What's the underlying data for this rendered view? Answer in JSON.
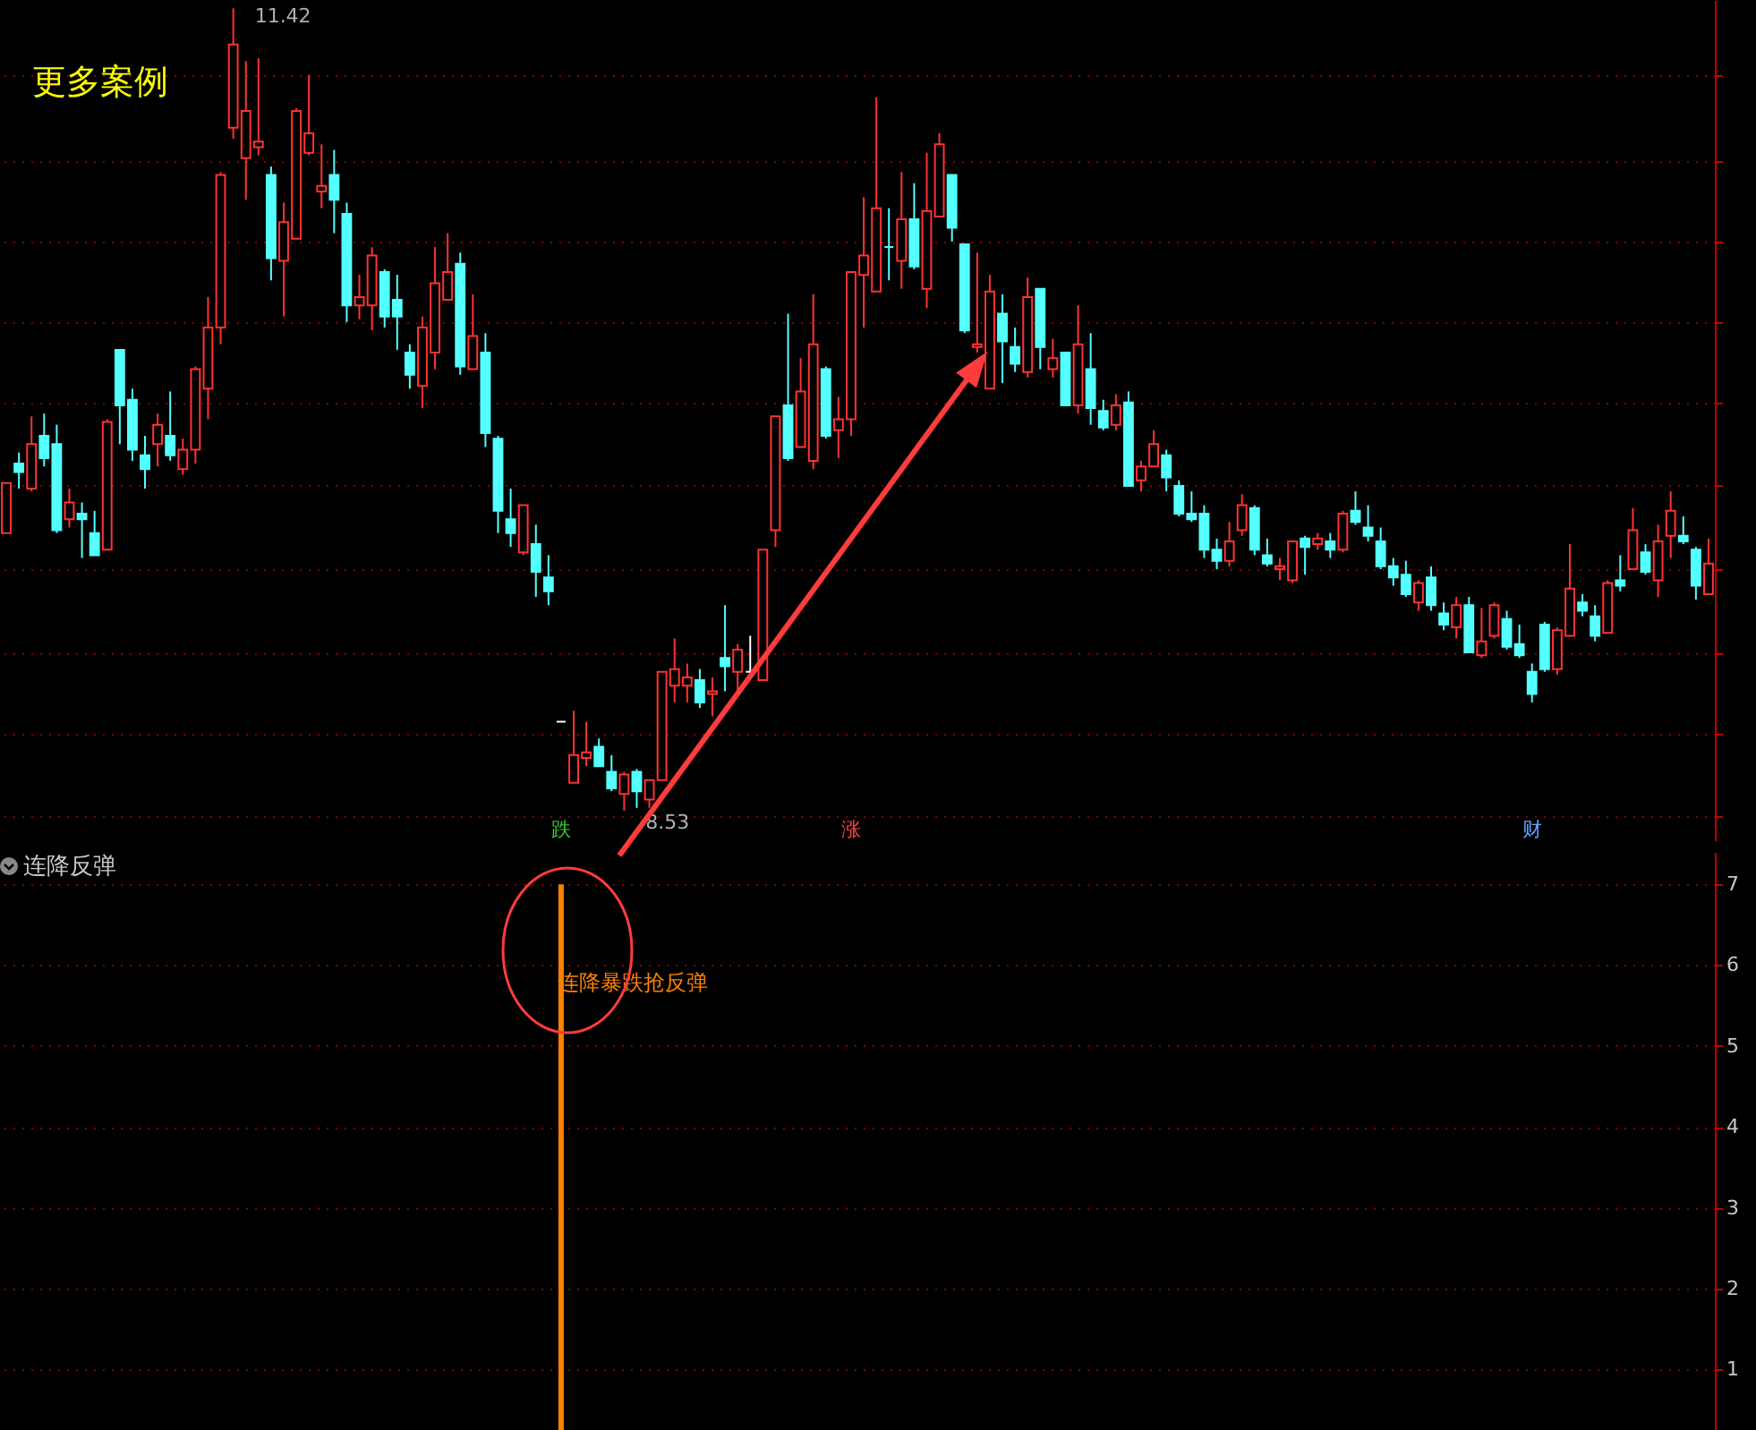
{
  "chart_data": [
    {
      "type": "candlestick",
      "categories": [
        null,
        null,
        null,
        null,
        null,
        null,
        null,
        null,
        null,
        null,
        null,
        null,
        null,
        null,
        null,
        null,
        null,
        null,
        null,
        null,
        null,
        null,
        null,
        null,
        null,
        null,
        null,
        null,
        null,
        null,
        null,
        null,
        null,
        null,
        null,
        null,
        null,
        null,
        null,
        null,
        null,
        null,
        null,
        null,
        null,
        null,
        null,
        null,
        null,
        null,
        null,
        null,
        null,
        null,
        null,
        null,
        null,
        null,
        null,
        null,
        null,
        null,
        null,
        null,
        null,
        null,
        null,
        null,
        null,
        null,
        null,
        null,
        null,
        null,
        null,
        null,
        null,
        null,
        null,
        null,
        null,
        null,
        null,
        null,
        null,
        null,
        null,
        null,
        null,
        null,
        null,
        null,
        null,
        null,
        null,
        null,
        null,
        null,
        null,
        null,
        null,
        null,
        null,
        null,
        null,
        null,
        null,
        null,
        null,
        null,
        null,
        null,
        null,
        null,
        null,
        null,
        null,
        null,
        null,
        null,
        null,
        null,
        null,
        null,
        null,
        null,
        null,
        null,
        null,
        null,
        null,
        null,
        null,
        null,
        null,
        null
      ],
      "ohlc": [
        [
          9.53,
          9.71,
          9.53,
          9.71
        ],
        [
          9.78,
          9.82,
          9.69,
          9.75
        ],
        [
          9.69,
          9.95,
          9.68,
          9.85
        ],
        [
          9.88,
          9.96,
          9.77,
          9.8
        ],
        [
          9.85,
          9.92,
          9.53,
          9.54
        ],
        [
          9.58,
          9.69,
          9.55,
          9.64
        ],
        [
          9.6,
          9.64,
          9.44,
          9.58
        ],
        [
          9.53,
          9.61,
          9.45,
          9.45
        ],
        [
          9.47,
          9.94,
          9.47,
          9.93
        ],
        [
          10.19,
          10.19,
          9.85,
          9.99
        ],
        [
          10.01,
          10.05,
          9.79,
          9.83
        ],
        [
          9.81,
          9.88,
          9.69,
          9.76
        ],
        [
          9.85,
          9.96,
          9.77,
          9.92
        ],
        [
          9.88,
          10.04,
          9.79,
          9.81
        ],
        [
          9.76,
          9.87,
          9.74,
          9.83
        ],
        [
          9.83,
          10.13,
          9.78,
          10.12
        ],
        [
          10.05,
          10.38,
          9.94,
          10.27
        ],
        [
          10.27,
          10.83,
          10.21,
          10.82
        ],
        [
          10.99,
          11.42,
          10.95,
          11.29
        ],
        [
          10.88,
          11.23,
          10.73,
          11.05
        ],
        [
          10.92,
          11.24,
          10.89,
          10.94
        ],
        [
          10.82,
          10.85,
          10.44,
          10.52
        ],
        [
          10.51,
          10.72,
          10.31,
          10.65
        ],
        [
          10.59,
          11.06,
          10.59,
          11.05
        ],
        [
          10.9,
          11.18,
          10.89,
          10.97
        ],
        [
          10.76,
          10.93,
          10.7,
          10.78
        ],
        [
          10.82,
          10.91,
          10.61,
          10.73
        ],
        [
          10.68,
          10.72,
          10.29,
          10.35
        ],
        [
          10.35,
          10.46,
          10.3,
          10.38
        ],
        [
          10.35,
          10.56,
          10.26,
          10.53
        ],
        [
          10.47,
          10.48,
          10.27,
          10.31
        ],
        [
          10.37,
          10.46,
          10.19,
          10.31
        ],
        [
          10.18,
          10.21,
          10.05,
          10.1
        ],
        [
          10.06,
          10.31,
          9.98,
          10.27
        ],
        [
          10.18,
          10.56,
          10.12,
          10.43
        ],
        [
          10.37,
          10.61,
          10.37,
          10.47
        ],
        [
          10.5,
          10.54,
          10.1,
          10.13
        ],
        [
          10.12,
          10.39,
          10.12,
          10.24
        ],
        [
          10.18,
          10.25,
          9.84,
          9.89
        ],
        [
          9.87,
          9.88,
          9.53,
          9.61
        ],
        [
          9.58,
          9.69,
          9.48,
          9.53
        ],
        [
          9.46,
          9.63,
          9.45,
          9.63
        ],
        [
          9.49,
          9.56,
          9.3,
          9.39
        ],
        [
          9.37,
          9.45,
          9.27,
          9.32
        ],
        [
          8.85,
          8.85,
          8.85,
          8.85
        ],
        [
          8.63,
          8.89,
          8.63,
          8.73
        ],
        [
          8.72,
          8.85,
          8.69,
          8.74
        ],
        [
          8.76,
          8.79,
          8.69,
          8.69
        ],
        [
          8.67,
          8.73,
          8.6,
          8.61
        ],
        [
          8.59,
          8.67,
          8.53,
          8.66
        ],
        [
          8.67,
          8.68,
          8.54,
          8.6
        ],
        [
          8.57,
          8.64,
          8.54,
          8.64
        ],
        [
          8.64,
          9.03,
          8.64,
          9.03
        ],
        [
          8.98,
          9.15,
          8.92,
          9.04
        ],
        [
          8.98,
          9.06,
          8.92,
          9.01
        ],
        [
          9.0,
          9.04,
          8.9,
          8.92
        ],
        [
          8.95,
          9.01,
          8.87,
          8.96
        ],
        [
          9.08,
          9.27,
          8.96,
          9.05
        ],
        [
          9.03,
          9.13,
          8.96,
          9.11
        ],
        [
          9.03,
          9.16,
          9.02,
          9.03
        ],
        [
          9.0,
          9.47,
          9.0,
          9.47
        ],
        [
          9.54,
          9.95,
          9.48,
          9.95
        ],
        [
          9.99,
          10.32,
          9.79,
          9.8
        ],
        [
          9.84,
          10.16,
          9.84,
          10.04
        ],
        [
          9.79,
          10.39,
          9.76,
          10.21
        ],
        [
          10.12,
          10.13,
          9.87,
          9.88
        ],
        [
          9.9,
          10.02,
          9.8,
          9.94
        ],
        [
          9.94,
          10.47,
          9.88,
          10.47
        ],
        [
          10.46,
          10.74,
          10.27,
          10.53
        ],
        [
          10.4,
          11.1,
          10.4,
          10.7
        ],
        [
          10.56,
          10.7,
          10.44,
          10.56
        ],
        [
          10.51,
          10.83,
          10.41,
          10.66
        ],
        [
          10.66,
          10.79,
          10.48,
          10.49
        ],
        [
          10.41,
          10.9,
          10.34,
          10.69
        ],
        [
          10.67,
          10.97,
          10.67,
          10.93
        ],
        [
          10.82,
          10.82,
          10.58,
          10.63
        ],
        [
          10.57,
          10.57,
          10.25,
          10.26
        ],
        [
          10.2,
          10.54,
          10.18,
          10.21
        ],
        [
          10.05,
          10.46,
          10.05,
          10.4
        ],
        [
          10.32,
          10.39,
          10.07,
          10.22
        ],
        [
          10.2,
          10.27,
          10.11,
          10.14
        ],
        [
          10.11,
          10.45,
          10.09,
          10.38
        ],
        [
          10.41,
          10.41,
          10.12,
          10.2
        ],
        [
          10.12,
          10.23,
          10.09,
          10.16
        ],
        [
          10.18,
          10.18,
          9.99,
          9.99
        ],
        [
          9.99,
          10.35,
          9.96,
          10.21
        ],
        [
          10.12,
          10.25,
          9.92,
          9.98
        ],
        [
          9.97,
          10.01,
          9.9,
          9.91
        ],
        [
          9.92,
          10.03,
          9.9,
          9.99
        ],
        [
          10.0,
          10.04,
          9.7,
          9.7
        ],
        [
          9.72,
          9.79,
          9.68,
          9.77
        ],
        [
          9.77,
          9.9,
          9.77,
          9.85
        ],
        [
          9.81,
          9.83,
          9.68,
          9.73
        ],
        [
          9.7,
          9.72,
          9.59,
          9.6
        ],
        [
          9.6,
          9.68,
          9.57,
          9.58
        ],
        [
          9.6,
          9.63,
          9.44,
          9.47
        ],
        [
          9.47,
          9.51,
          9.4,
          9.43
        ],
        [
          9.43,
          9.57,
          9.41,
          9.5
        ],
        [
          9.54,
          9.67,
          9.52,
          9.63
        ],
        [
          9.62,
          9.63,
          9.45,
          9.47
        ],
        [
          9.45,
          9.51,
          9.41,
          9.42
        ],
        [
          9.4,
          9.44,
          9.36,
          9.41
        ],
        [
          9.36,
          9.5,
          9.35,
          9.5
        ],
        [
          9.51,
          9.52,
          9.38,
          9.48
        ],
        [
          9.49,
          9.53,
          9.47,
          9.51
        ],
        [
          9.5,
          9.53,
          9.44,
          9.47
        ],
        [
          9.47,
          9.61,
          9.46,
          9.6
        ],
        [
          9.61,
          9.68,
          9.56,
          9.57
        ],
        [
          9.55,
          9.63,
          9.5,
          9.52
        ],
        [
          9.5,
          9.55,
          9.4,
          9.41
        ],
        [
          9.41,
          9.44,
          9.34,
          9.37
        ],
        [
          9.38,
          9.43,
          9.3,
          9.31
        ],
        [
          9.28,
          9.36,
          9.25,
          9.35
        ],
        [
          9.37,
          9.41,
          9.25,
          9.27
        ],
        [
          9.24,
          9.28,
          9.18,
          9.2
        ],
        [
          9.19,
          9.3,
          9.15,
          9.27
        ],
        [
          9.27,
          9.3,
          9.1,
          9.1
        ],
        [
          9.09,
          9.26,
          9.08,
          9.14
        ],
        [
          9.16,
          9.28,
          9.15,
          9.27
        ],
        [
          9.22,
          9.25,
          9.11,
          9.12
        ],
        [
          9.13,
          9.2,
          9.08,
          9.09
        ],
        [
          9.03,
          9.06,
          8.92,
          8.95
        ],
        [
          9.2,
          9.21,
          9.03,
          9.04
        ],
        [
          9.04,
          9.19,
          9.02,
          9.18
        ],
        [
          9.16,
          9.49,
          9.16,
          9.33
        ],
        [
          9.28,
          9.31,
          9.23,
          9.25
        ],
        [
          9.23,
          9.27,
          9.14,
          9.16
        ],
        [
          9.17,
          9.36,
          9.17,
          9.35
        ],
        [
          9.36,
          9.45,
          9.32,
          9.34
        ],
        [
          9.4,
          9.62,
          9.4,
          9.54
        ],
        [
          9.46,
          9.49,
          9.38,
          9.39
        ],
        [
          9.36,
          9.56,
          9.3,
          9.5
        ],
        [
          9.52,
          9.68,
          9.44,
          9.61
        ],
        [
          9.52,
          9.59,
          9.49,
          9.5
        ],
        [
          9.47,
          9.48,
          9.29,
          9.34
        ],
        [
          9.31,
          9.51,
          9.31,
          9.42
        ]
      ],
      "colors": [
        "#ff3232",
        "#54ffff",
        "#ff3232",
        "#54ffff",
        "#54ffff",
        "#ff3232",
        "#54ffff",
        "#54ffff",
        "#ff3232",
        "#54ffff",
        "#54ffff",
        "#54ffff",
        "#ff3232",
        "#54ffff",
        "#ff3232",
        "#ff3232",
        "#ff3232",
        "#ff3232",
        "#ff3232",
        "#ff3232",
        "#ff3232",
        "#54ffff",
        "#ff3232",
        "#ff3232",
        "#ff3232",
        "#ff3232",
        "#54ffff",
        "#54ffff",
        "#ff3232",
        "#ff3232",
        "#54ffff",
        "#54ffff",
        "#54ffff",
        "#ff3232",
        "#ff3232",
        "#ff3232",
        "#54ffff",
        "#ff3232",
        "#54ffff",
        "#54ffff",
        "#54ffff",
        "#ff3232",
        "#54ffff",
        "#54ffff",
        "#ffffff",
        "#ff3232",
        "#ff3232",
        "#54ffff",
        "#54ffff",
        "#ff3232",
        "#54ffff",
        "#ff3232",
        "#ff3232",
        "#ff3232",
        "#ff3232",
        "#54ffff",
        "#ff3232",
        "#54ffff",
        "#ff3232",
        "#ffffff",
        "#ff3232",
        "#ff3232",
        "#54ffff",
        "#ff3232",
        "#ff3232",
        "#54ffff",
        "#ff3232",
        "#ff3232",
        "#ff3232",
        "#ff3232",
        "#54ffff",
        "#ff3232",
        "#54ffff",
        "#ff3232",
        "#ff3232",
        "#54ffff",
        "#54ffff",
        "#ff3232",
        "#ff3232",
        "#54ffff",
        "#54ffff",
        "#ff3232",
        "#54ffff",
        "#ff3232",
        "#54ffff",
        "#ff3232",
        "#54ffff",
        "#54ffff",
        "#ff3232",
        "#54ffff",
        "#ff3232",
        "#ff3232",
        "#54ffff",
        "#54ffff",
        "#54ffff",
        "#54ffff",
        "#54ffff",
        "#ff3232",
        "#ff3232",
        "#54ffff",
        "#54ffff",
        "#ff3232",
        "#ff3232",
        "#54ffff",
        "#ff3232",
        "#54ffff",
        "#ff3232",
        "#54ffff",
        "#54ffff",
        "#54ffff",
        "#54ffff",
        "#54ffff",
        "#ff3232",
        "#54ffff",
        "#54ffff",
        "#ff3232",
        "#54ffff",
        "#ff3232",
        "#ff3232",
        "#54ffff",
        "#54ffff",
        "#54ffff",
        "#54ffff",
        "#ff3232",
        "#ff3232",
        "#54ffff",
        "#54ffff",
        "#ff3232",
        "#54ffff",
        "#ff3232",
        "#54ffff",
        "#ff3232",
        "#ff3232",
        "#54ffff",
        "#54ffff",
        "#ff3232"
      ],
      "ylim": [
        8.42,
        11.45
      ],
      "yticks": [
        {
          "value": 11.18,
          "label": null
        },
        {
          "value": 10.87,
          "label": null
        },
        {
          "value": 10.58,
          "label": null
        },
        {
          "value": 10.29,
          "label": null
        },
        {
          "value": 10.0,
          "label": null
        },
        {
          "value": 9.7,
          "label": null
        },
        {
          "value": 9.4,
          "label": null
        },
        {
          "value": 9.1,
          "label": null
        },
        {
          "value": 8.81,
          "label": null
        },
        {
          "value": 8.51,
          "label": null
        }
      ],
      "grid": true,
      "annotations": [
        "更多案例",
        "11.42",
        "8.53",
        "跌",
        "涨",
        "财"
      ]
    },
    {
      "type": "bar",
      "title": "连降反弹",
      "categories": [
        null,
        null,
        null,
        null,
        null,
        null,
        null,
        null,
        null,
        null,
        null,
        null,
        null,
        null,
        null,
        null,
        null,
        null,
        null,
        null,
        null,
        null,
        null,
        null,
        null,
        null,
        null,
        null,
        null,
        null,
        null,
        null,
        null,
        null,
        null,
        null,
        null,
        null,
        null,
        null,
        null,
        null,
        null,
        null,
        null,
        null,
        null,
        null,
        null,
        null,
        null,
        null,
        null,
        null,
        null,
        null,
        null,
        null,
        null,
        null,
        null,
        null,
        null,
        null,
        null,
        null,
        null,
        null,
        null,
        null,
        null,
        null,
        null,
        null,
        null,
        null,
        null,
        null,
        null,
        null,
        null,
        null,
        null,
        null,
        null,
        null,
        null,
        null,
        null,
        null,
        null,
        null,
        null,
        null,
        null,
        null,
        null,
        null,
        null,
        null,
        null,
        null,
        null,
        null,
        null,
        null,
        null,
        null,
        null,
        null,
        null,
        null,
        null,
        null,
        null,
        null,
        null,
        null,
        null,
        null,
        null,
        null,
        null,
        null,
        null,
        null,
        null,
        null,
        null,
        null,
        null,
        null,
        null,
        null,
        null,
        null
      ],
      "values": [
        null,
        null,
        null,
        null,
        null,
        null,
        null,
        null,
        null,
        null,
        null,
        null,
        null,
        null,
        null,
        null,
        null,
        null,
        null,
        null,
        null,
        null,
        null,
        null,
        null,
        null,
        null,
        null,
        null,
        null,
        null,
        null,
        null,
        null,
        null,
        null,
        null,
        null,
        null,
        null,
        null,
        null,
        null,
        null,
        7,
        null,
        null,
        null,
        null,
        null,
        null,
        null,
        null,
        null,
        null,
        null,
        null,
        null,
        null,
        null,
        null,
        null,
        null,
        null,
        null,
        null,
        null,
        null,
        null,
        null,
        null,
        null,
        null,
        null,
        null,
        null,
        null,
        null,
        null,
        null,
        null,
        null,
        null,
        null,
        null,
        null,
        null,
        null,
        null,
        null,
        null,
        null,
        null,
        null,
        null,
        null,
        null,
        null,
        null,
        null,
        null,
        null,
        null,
        null,
        null,
        null,
        null,
        null,
        null,
        null,
        null,
        null,
        null,
        null,
        null,
        null,
        null,
        null,
        null,
        null,
        null,
        null,
        null,
        null,
        null,
        null,
        null,
        null,
        null,
        null,
        null,
        null,
        null,
        null,
        null,
        null
      ],
      "color": "#ff8000",
      "ylim": [
        0.25,
        7.4
      ],
      "yticks": [
        1,
        2,
        3,
        4,
        5,
        6,
        7
      ],
      "grid": true,
      "tick_labels": "y",
      "annotations": [
        "连降暴跌抢反弹"
      ]
    }
  ]
}
